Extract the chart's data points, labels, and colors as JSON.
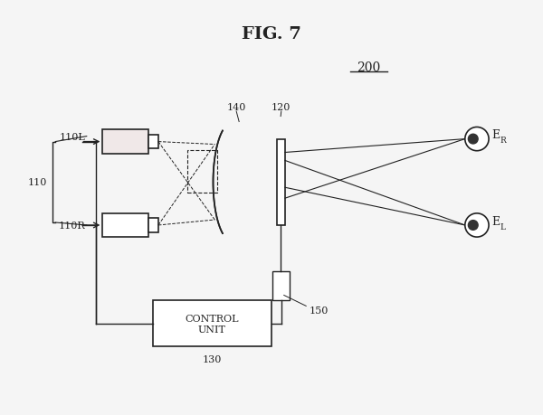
{
  "title": "FIG. 7",
  "bg_color": "#f5f5f5",
  "label_200": "200",
  "label_140": "140",
  "label_120": "120",
  "label_110": "110",
  "label_110L": "110L",
  "label_110R": "110R",
  "label_130": "130",
  "label_150": "150",
  "label_ER": "E",
  "label_EL": "E",
  "label_sub_R": "R",
  "label_sub_L": "L",
  "control_text": "CONTROL\nUNIT"
}
